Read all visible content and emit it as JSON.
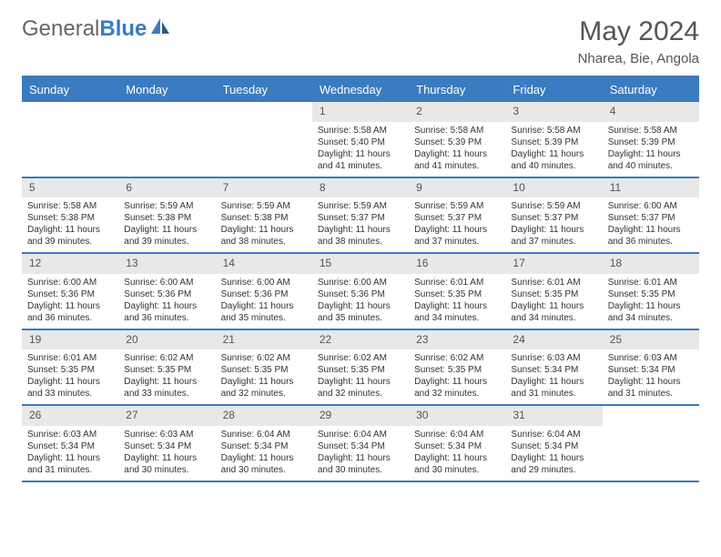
{
  "logo": {
    "part1": "General",
    "part2": "Blue"
  },
  "title": "May 2024",
  "subtitle": "Nharea, Bie, Angola",
  "colors": {
    "accent": "#3b7bbf",
    "daynum_bg": "#e8e8e8",
    "text": "#555555",
    "body_text": "#333333"
  },
  "typography": {
    "title_size": 30,
    "subtitle_size": 15,
    "dayhead_size": 13,
    "daynum_size": 12,
    "cell_size": 10
  },
  "calendar": {
    "type": "table",
    "day_names": [
      "Sunday",
      "Monday",
      "Tuesday",
      "Wednesday",
      "Thursday",
      "Friday",
      "Saturday"
    ],
    "weeks": [
      [
        {
          "n": "",
          "sr": "",
          "ss": "",
          "dl": ""
        },
        {
          "n": "",
          "sr": "",
          "ss": "",
          "dl": ""
        },
        {
          "n": "",
          "sr": "",
          "ss": "",
          "dl": ""
        },
        {
          "n": "1",
          "sr": "Sunrise: 5:58 AM",
          "ss": "Sunset: 5:40 PM",
          "dl": "Daylight: 11 hours and 41 minutes."
        },
        {
          "n": "2",
          "sr": "Sunrise: 5:58 AM",
          "ss": "Sunset: 5:39 PM",
          "dl": "Daylight: 11 hours and 41 minutes."
        },
        {
          "n": "3",
          "sr": "Sunrise: 5:58 AM",
          "ss": "Sunset: 5:39 PM",
          "dl": "Daylight: 11 hours and 40 minutes."
        },
        {
          "n": "4",
          "sr": "Sunrise: 5:58 AM",
          "ss": "Sunset: 5:39 PM",
          "dl": "Daylight: 11 hours and 40 minutes."
        }
      ],
      [
        {
          "n": "5",
          "sr": "Sunrise: 5:58 AM",
          "ss": "Sunset: 5:38 PM",
          "dl": "Daylight: 11 hours and 39 minutes."
        },
        {
          "n": "6",
          "sr": "Sunrise: 5:59 AM",
          "ss": "Sunset: 5:38 PM",
          "dl": "Daylight: 11 hours and 39 minutes."
        },
        {
          "n": "7",
          "sr": "Sunrise: 5:59 AM",
          "ss": "Sunset: 5:38 PM",
          "dl": "Daylight: 11 hours and 38 minutes."
        },
        {
          "n": "8",
          "sr": "Sunrise: 5:59 AM",
          "ss": "Sunset: 5:37 PM",
          "dl": "Daylight: 11 hours and 38 minutes."
        },
        {
          "n": "9",
          "sr": "Sunrise: 5:59 AM",
          "ss": "Sunset: 5:37 PM",
          "dl": "Daylight: 11 hours and 37 minutes."
        },
        {
          "n": "10",
          "sr": "Sunrise: 5:59 AM",
          "ss": "Sunset: 5:37 PM",
          "dl": "Daylight: 11 hours and 37 minutes."
        },
        {
          "n": "11",
          "sr": "Sunrise: 6:00 AM",
          "ss": "Sunset: 5:37 PM",
          "dl": "Daylight: 11 hours and 36 minutes."
        }
      ],
      [
        {
          "n": "12",
          "sr": "Sunrise: 6:00 AM",
          "ss": "Sunset: 5:36 PM",
          "dl": "Daylight: 11 hours and 36 minutes."
        },
        {
          "n": "13",
          "sr": "Sunrise: 6:00 AM",
          "ss": "Sunset: 5:36 PM",
          "dl": "Daylight: 11 hours and 36 minutes."
        },
        {
          "n": "14",
          "sr": "Sunrise: 6:00 AM",
          "ss": "Sunset: 5:36 PM",
          "dl": "Daylight: 11 hours and 35 minutes."
        },
        {
          "n": "15",
          "sr": "Sunrise: 6:00 AM",
          "ss": "Sunset: 5:36 PM",
          "dl": "Daylight: 11 hours and 35 minutes."
        },
        {
          "n": "16",
          "sr": "Sunrise: 6:01 AM",
          "ss": "Sunset: 5:35 PM",
          "dl": "Daylight: 11 hours and 34 minutes."
        },
        {
          "n": "17",
          "sr": "Sunrise: 6:01 AM",
          "ss": "Sunset: 5:35 PM",
          "dl": "Daylight: 11 hours and 34 minutes."
        },
        {
          "n": "18",
          "sr": "Sunrise: 6:01 AM",
          "ss": "Sunset: 5:35 PM",
          "dl": "Daylight: 11 hours and 34 minutes."
        }
      ],
      [
        {
          "n": "19",
          "sr": "Sunrise: 6:01 AM",
          "ss": "Sunset: 5:35 PM",
          "dl": "Daylight: 11 hours and 33 minutes."
        },
        {
          "n": "20",
          "sr": "Sunrise: 6:02 AM",
          "ss": "Sunset: 5:35 PM",
          "dl": "Daylight: 11 hours and 33 minutes."
        },
        {
          "n": "21",
          "sr": "Sunrise: 6:02 AM",
          "ss": "Sunset: 5:35 PM",
          "dl": "Daylight: 11 hours and 32 minutes."
        },
        {
          "n": "22",
          "sr": "Sunrise: 6:02 AM",
          "ss": "Sunset: 5:35 PM",
          "dl": "Daylight: 11 hours and 32 minutes."
        },
        {
          "n": "23",
          "sr": "Sunrise: 6:02 AM",
          "ss": "Sunset: 5:35 PM",
          "dl": "Daylight: 11 hours and 32 minutes."
        },
        {
          "n": "24",
          "sr": "Sunrise: 6:03 AM",
          "ss": "Sunset: 5:34 PM",
          "dl": "Daylight: 11 hours and 31 minutes."
        },
        {
          "n": "25",
          "sr": "Sunrise: 6:03 AM",
          "ss": "Sunset: 5:34 PM",
          "dl": "Daylight: 11 hours and 31 minutes."
        }
      ],
      [
        {
          "n": "26",
          "sr": "Sunrise: 6:03 AM",
          "ss": "Sunset: 5:34 PM",
          "dl": "Daylight: 11 hours and 31 minutes."
        },
        {
          "n": "27",
          "sr": "Sunrise: 6:03 AM",
          "ss": "Sunset: 5:34 PM",
          "dl": "Daylight: 11 hours and 30 minutes."
        },
        {
          "n": "28",
          "sr": "Sunrise: 6:04 AM",
          "ss": "Sunset: 5:34 PM",
          "dl": "Daylight: 11 hours and 30 minutes."
        },
        {
          "n": "29",
          "sr": "Sunrise: 6:04 AM",
          "ss": "Sunset: 5:34 PM",
          "dl": "Daylight: 11 hours and 30 minutes."
        },
        {
          "n": "30",
          "sr": "Sunrise: 6:04 AM",
          "ss": "Sunset: 5:34 PM",
          "dl": "Daylight: 11 hours and 30 minutes."
        },
        {
          "n": "31",
          "sr": "Sunrise: 6:04 AM",
          "ss": "Sunset: 5:34 PM",
          "dl": "Daylight: 11 hours and 29 minutes."
        },
        {
          "n": "",
          "sr": "",
          "ss": "",
          "dl": ""
        }
      ]
    ]
  }
}
